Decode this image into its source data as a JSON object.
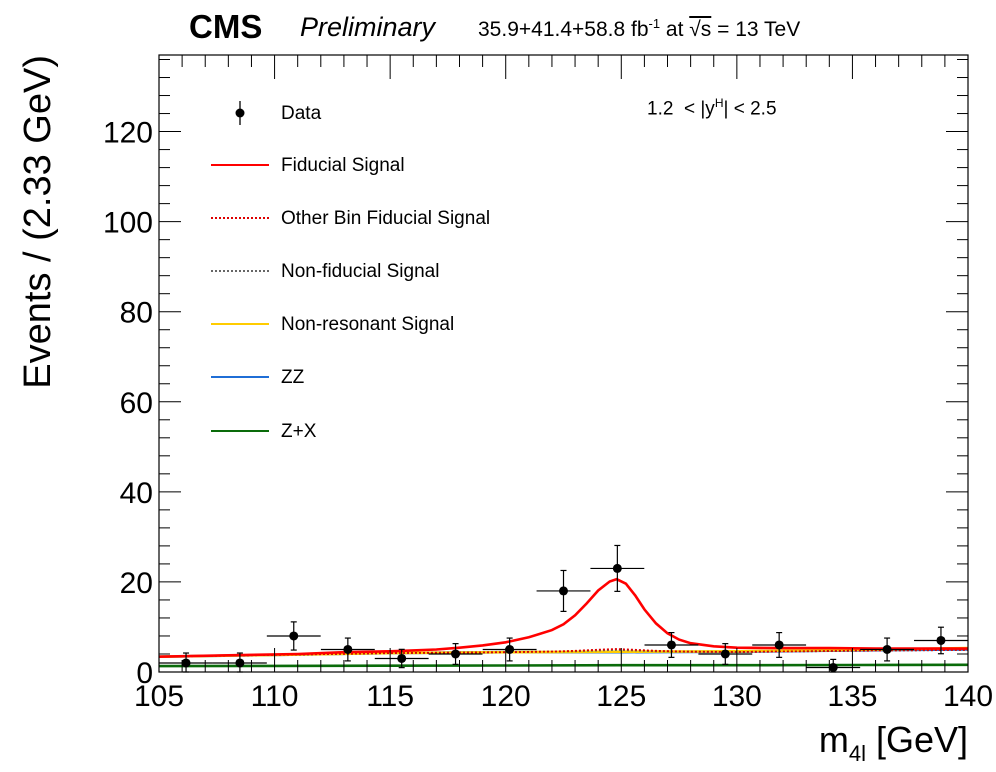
{
  "header": {
    "experiment": "CMS",
    "status": "Preliminary",
    "lumi_prefix": "35.9+41.4+58.8 fb",
    "lumi_exp": "-1",
    "energy_mid": " at ",
    "sqrt_s": "√s",
    "energy_suffix": " = 13 TeV"
  },
  "bin_label": {
    "low": "1.2",
    "lt1": "<",
    "var_open": "|y",
    "var_sup": "H",
    "var_close": "|",
    "lt2": "<",
    "high": "2.5"
  },
  "chart_data": {
    "type": "scatter",
    "xlabel": "m_4l [GeV]",
    "ylabel": "Events / (2.33 GeV)",
    "xlim": [
      105,
      140
    ],
    "ylim": [
      0,
      137
    ],
    "xticks": [
      105,
      110,
      115,
      120,
      125,
      130,
      135,
      140
    ],
    "yticks": [
      0,
      20,
      40,
      60,
      80,
      100,
      120
    ],
    "legend_position": "top-left",
    "data": {
      "name": "Data",
      "x": [
        106.17,
        108.5,
        110.83,
        113.17,
        115.5,
        117.83,
        120.17,
        122.5,
        124.83,
        127.17,
        129.5,
        131.83,
        134.17,
        136.5,
        138.83
      ],
      "y": [
        2,
        2,
        8,
        5,
        3,
        4,
        5,
        18,
        23,
        6,
        4,
        6,
        1,
        5,
        7
      ],
      "xerr": 1.165
    },
    "series": [
      {
        "name": "Fiducial Signal",
        "color": "#ff0000",
        "style": "solid",
        "x": [
          105,
          108,
          111,
          113,
          115,
          117,
          118,
          119,
          120,
          121,
          122,
          122.5,
          123,
          123.5,
          124,
          124.5,
          124.8,
          125.2,
          125.6,
          126,
          126.5,
          127,
          127.5,
          128,
          129,
          130,
          132,
          134,
          136,
          138,
          140
        ],
        "y": [
          3.4,
          3.7,
          4.0,
          4.4,
          4.6,
          5.0,
          5.4,
          5.9,
          6.6,
          7.7,
          9.3,
          10.6,
          12.6,
          15.2,
          18.1,
          20.1,
          20.6,
          19.6,
          17.0,
          13.9,
          10.8,
          8.6,
          7.2,
          6.4,
          5.7,
          5.4,
          5.3,
          5.3,
          5.2,
          5.2,
          5.2
        ]
      },
      {
        "name": "Other Bin Fiducial Signal",
        "color": "#dd0000",
        "style": "dotted",
        "x": [
          105,
          110,
          115,
          120,
          122,
          123,
          124,
          124.8,
          125.5,
          126.5,
          128,
          130,
          135,
          140
        ],
        "y": [
          3.4,
          3.8,
          4.2,
          4.4,
          4.55,
          4.7,
          4.95,
          5.1,
          4.95,
          4.7,
          4.5,
          4.45,
          4.7,
          4.9
        ]
      },
      {
        "name": "Non-fiducial Signal",
        "color": "#666666",
        "style": "dotted",
        "x": [
          105,
          110,
          115,
          120,
          123,
          124.8,
          126.5,
          130,
          135,
          140
        ],
        "y": [
          3.4,
          3.8,
          4.2,
          4.4,
          4.6,
          4.9,
          4.6,
          4.45,
          4.7,
          4.9
        ]
      },
      {
        "name": "Non-resonant Signal",
        "color": "#ffcc00",
        "style": "solid",
        "x": [
          105,
          110,
          115,
          120,
          125,
          130,
          135,
          140
        ],
        "y": [
          3.4,
          3.8,
          4.2,
          4.4,
          4.5,
          4.6,
          4.9,
          5.3
        ]
      },
      {
        "name": "ZZ",
        "color": "#1f6ed6",
        "style": "solid",
        "x": [
          105,
          110,
          115,
          120,
          125,
          130,
          135,
          140
        ],
        "y": [
          3.4,
          3.8,
          4.2,
          4.4,
          4.4,
          4.5,
          4.8,
          5.0
        ]
      },
      {
        "name": "Z+X",
        "color": "#0a6b0a",
        "style": "solid",
        "x": [
          105,
          110,
          115,
          120,
          125,
          130,
          135,
          140
        ],
        "y": [
          1.3,
          1.35,
          1.4,
          1.45,
          1.5,
          1.5,
          1.55,
          1.6
        ]
      }
    ]
  }
}
